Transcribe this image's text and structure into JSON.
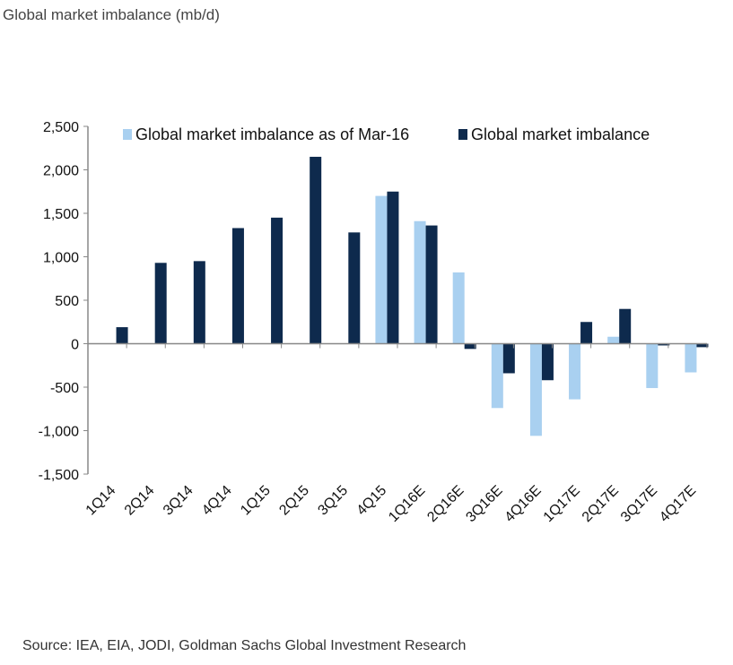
{
  "page": {
    "title": "Global market imbalance (mb/d)",
    "source": "Source: IEA, EIA, JODI, Goldman Sachs Global Investment Research"
  },
  "colors": {
    "light": "#a9d0f0",
    "dark": "#0e2a4d",
    "axis": "#888888"
  },
  "chart_data": {
    "type": "bar",
    "title": "Global market imbalance (mb/d)",
    "xlabel": "",
    "ylabel": "",
    "ylim": [
      -1500,
      2500
    ],
    "yticks": [
      2500,
      2000,
      1500,
      1000,
      500,
      0,
      -500,
      -1000,
      -1500
    ],
    "ytick_labels": [
      "2,500",
      "2,000",
      "1,500",
      "1,000",
      "500",
      "0",
      "-500",
      "-1,000",
      "-1,500"
    ],
    "grid": false,
    "legend_position": "top",
    "categories": [
      "1Q14",
      "2Q14",
      "3Q14",
      "4Q14",
      "1Q15",
      "2Q15",
      "3Q15",
      "4Q15",
      "1Q16E",
      "2Q16E",
      "3Q16E",
      "4Q16E",
      "1Q17E",
      "2Q17E",
      "3Q17E",
      "4Q17E"
    ],
    "series": [
      {
        "name": "Global market imbalance as of Mar-16",
        "color": "#a9d0f0",
        "values": [
          null,
          null,
          null,
          null,
          null,
          null,
          null,
          1700,
          1410,
          820,
          -740,
          -1060,
          -640,
          80,
          -510,
          -330
        ]
      },
      {
        "name": "Global market imbalance",
        "color": "#0e2a4d",
        "values": [
          190,
          930,
          950,
          1330,
          1450,
          2150,
          1280,
          1750,
          1360,
          -60,
          -340,
          -420,
          250,
          400,
          -20,
          -40
        ]
      }
    ]
  }
}
